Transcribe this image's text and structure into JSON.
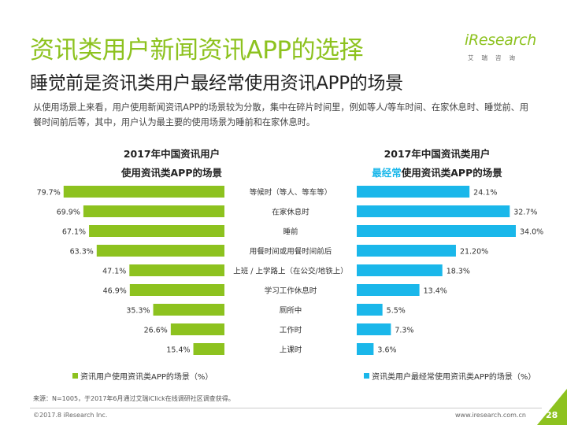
{
  "title": "资讯类用户新闻资讯APP的选择",
  "subtitle": "睡觉前是资讯类用户最经常使用资讯APP的场景",
  "intro": "从使用场景上来看，用户使用新闻资讯APP的场景较为分散，集中在碎片时间里，例如等人/等车时间、在家休息时、睡觉前、用餐时间前后等，其中，用户认为最主要的使用场景为睡前和在家休息时。",
  "logo": {
    "brand": "iResearch",
    "sub": "艾瑞咨询"
  },
  "left_chart": {
    "heading_line1": "2017年中国资讯用户",
    "heading_line2": "使用资讯类APP的场景"
  },
  "right_chart": {
    "heading_line1": "2017年中国资讯类用户",
    "heading_line2_highlight": "最经常",
    "heading_line2_rest": "使用资讯类APP的场景"
  },
  "colors": {
    "accent": "#8dc21f",
    "left_bar": "#8dc21f",
    "right_bar": "#1ab7ea",
    "corner": "#8dc21f"
  },
  "chart_data": [
    {
      "type": "bar",
      "orientation": "horizontal",
      "direction": "right-to-left",
      "title": "2017年中国资讯用户使用资讯类APP的场景",
      "series": [
        {
          "name": "资讯用户使用资讯类APP的场景（%）",
          "values": [
            79.7,
            69.9,
            67.1,
            63.3,
            47.1,
            46.9,
            35.3,
            26.6,
            15.4
          ],
          "labels": [
            "79.7%",
            "69.9%",
            "67.1%",
            "63.3%",
            "47.1%",
            "46.9%",
            "35.3%",
            "26.6%",
            "15.4%"
          ]
        }
      ],
      "categories": [
        "等候时（等人、等车等）",
        "在家休息时",
        "睡前",
        "用餐时间或用餐时间前后",
        "上班 / 上学路上（在公交/地铁上）",
        "学习工作休息时",
        "厕所中",
        "工作时",
        "上课时"
      ],
      "xlim": [
        0,
        80
      ],
      "legend": "bottom"
    },
    {
      "type": "bar",
      "orientation": "horizontal",
      "direction": "left-to-right",
      "title": "2017年中国资讯类用户最经常使用资讯类APP的场景",
      "series": [
        {
          "name": "资讯类用户最经常使用资讯类APP的场景（%）",
          "values": [
            24.1,
            32.7,
            34.0,
            21.2,
            18.3,
            13.4,
            5.5,
            7.3,
            3.6
          ],
          "labels": [
            "24.1%",
            "32.7%",
            "34.0%",
            "21.20%",
            "18.3%",
            "13.4%",
            "5.5%",
            "7.3%",
            "3.6%"
          ]
        }
      ],
      "categories": [
        "等候时（等人、等车等）",
        "在家休息时",
        "睡前",
        "用餐时间或用餐时间前后",
        "上班 / 上学路上（在公交/地铁上）",
        "学习工作休息时",
        "厕所中",
        "工作时",
        "上课时"
      ],
      "xlim": [
        0,
        34
      ],
      "legend": "bottom"
    }
  ],
  "source": "来源：N=1005，于2017年6月通过艾瑞iClick在线调研社区调查获得。",
  "copyright": "©2017.8 iResearch Inc.",
  "website": "www.iresearch.com.cn",
  "page_number": "28"
}
